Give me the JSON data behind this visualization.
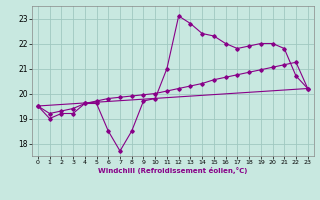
{
  "xlabel": "Windchill (Refroidissement éolien,°C)",
  "background_color": "#c8e8e0",
  "grid_color": "#a0c8c0",
  "line_color": "#880088",
  "xlim": [
    -0.5,
    23.5
  ],
  "ylim": [
    17.5,
    23.5
  ],
  "xticks": [
    0,
    1,
    2,
    3,
    4,
    5,
    6,
    7,
    8,
    9,
    10,
    11,
    12,
    13,
    14,
    15,
    16,
    17,
    18,
    19,
    20,
    21,
    22,
    23
  ],
  "yticks": [
    18,
    19,
    20,
    21,
    22,
    23
  ],
  "series1_x": [
    0,
    1,
    2,
    3,
    4,
    5,
    6,
    7,
    8,
    9,
    10,
    11,
    12,
    13,
    14,
    15,
    16,
    17,
    18,
    19,
    20,
    21,
    22,
    23
  ],
  "series1_y": [
    19.5,
    19.0,
    19.2,
    19.2,
    19.6,
    19.6,
    18.5,
    17.7,
    18.5,
    19.7,
    19.8,
    21.0,
    23.1,
    22.8,
    22.4,
    22.3,
    22.0,
    21.8,
    21.9,
    22.0,
    22.0,
    21.8,
    20.7,
    20.2
  ],
  "series2_x": [
    0,
    1,
    2,
    3,
    4,
    5,
    6,
    7,
    8,
    9,
    10,
    11,
    12,
    13,
    14,
    15,
    16,
    17,
    18,
    19,
    20,
    21,
    22,
    23
  ],
  "series2_y": [
    19.5,
    19.2,
    19.3,
    19.4,
    19.6,
    19.7,
    19.8,
    19.85,
    19.9,
    19.95,
    20.0,
    20.1,
    20.2,
    20.3,
    20.4,
    20.55,
    20.65,
    20.75,
    20.85,
    20.95,
    21.05,
    21.15,
    21.25,
    20.2
  ],
  "series3_x": [
    0,
    23
  ],
  "series3_y": [
    19.5,
    20.2
  ]
}
